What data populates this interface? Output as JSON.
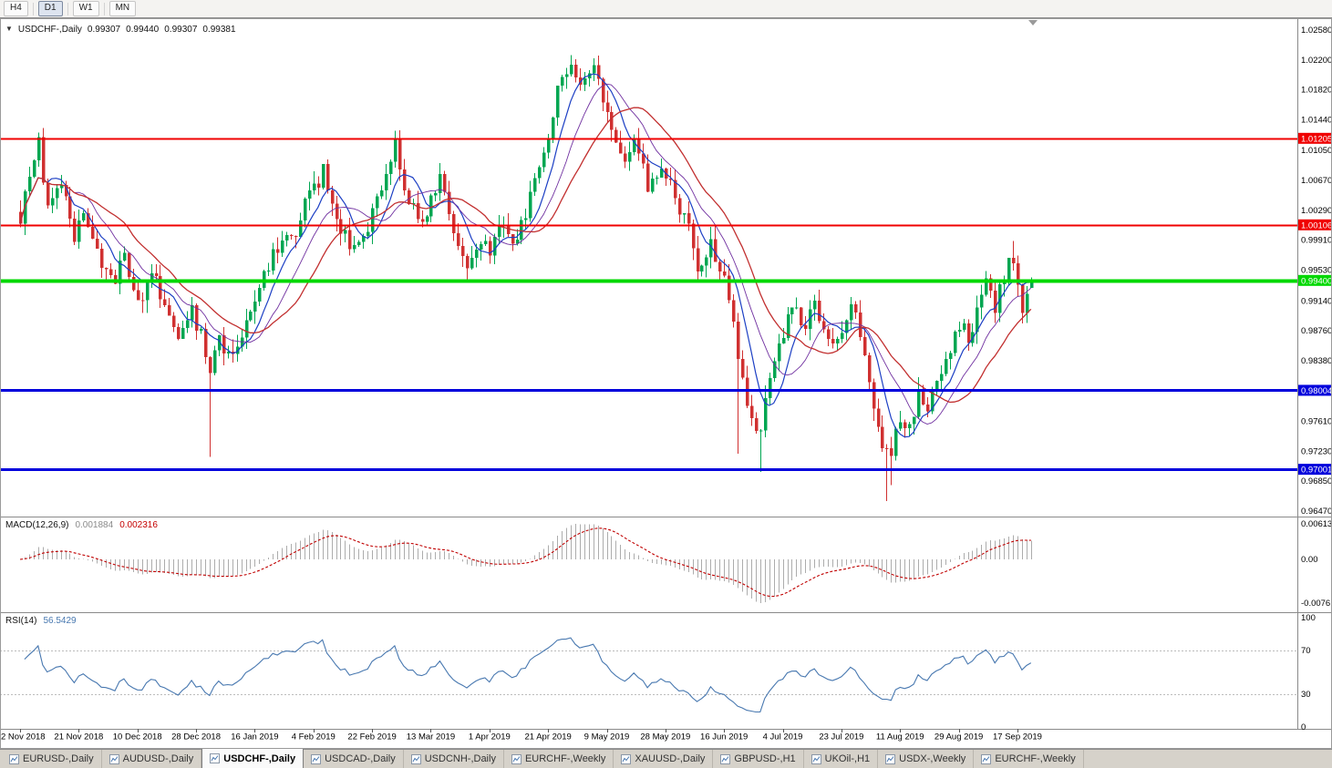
{
  "icons": {
    "symbol_caret": "▼"
  },
  "toolbar": {
    "periods": [
      {
        "label": "H4",
        "active": false
      },
      {
        "label": "D1",
        "active": true
      },
      {
        "label": "W1",
        "active": false
      },
      {
        "label": "MN",
        "active": false
      }
    ]
  },
  "chart_data": {
    "type": "candlestick",
    "symbol": "USDCHF-,Daily",
    "header_ohlc": {
      "open": "0.99307",
      "high": "0.99440",
      "low": "0.99307",
      "close": "0.99381"
    },
    "bars": 225,
    "price_axis": {
      "top": 1.0258,
      "bottom": 0.9647,
      "tick_labels": [
        "1.02580",
        "1.02200",
        "1.01820",
        "1.01440",
        "1.01050",
        "1.00670",
        "1.00290",
        "0.99910",
        "0.99530",
        "0.99140",
        "0.98760",
        "0.98380",
        "0.97610",
        "0.97230",
        "0.96850",
        "0.96470"
      ],
      "tick_values": [
        1.0258,
        1.022,
        1.0182,
        1.0144,
        1.0105,
        1.0067,
        1.0029,
        0.9991,
        0.9953,
        0.9914,
        0.9876,
        0.9838,
        0.9761,
        0.9723,
        0.9685,
        0.9647
      ]
    },
    "x_axis": {
      "tick_step_bars": 13,
      "labels": [
        "2 Nov 2018",
        "21 Nov 2018",
        "10 Dec 2018",
        "28 Dec 2018",
        "16 Jan 2019",
        "4 Feb 2019",
        "22 Feb 2019",
        "13 Mar 2019",
        "1 Apr 2019",
        "21 Apr 2019",
        "9 May 2019",
        "28 May 2019",
        "16 Jun 2019",
        "4 Jul 2019",
        "23 Jul 2019",
        "11 Aug 2019",
        "29 Aug 2019",
        "17 Sep 2019"
      ]
    },
    "hlines": [
      {
        "price": 1.01205,
        "label": "1.01205",
        "color": "#F00000",
        "width": 2
      },
      {
        "price": 1.00106,
        "label": "1.00106",
        "color": "#F00000",
        "width": 2
      },
      {
        "price": 0.994,
        "label": "0.99400",
        "color": "#00D800",
        "width": 4
      },
      {
        "price": 0.98004,
        "label": "0.98004",
        "color": "#0000DC",
        "width": 3
      },
      {
        "price": 0.97001,
        "label": "0.97001",
        "color": "#0000DC",
        "width": 3
      }
    ],
    "candles": {
      "up_color": "#00A651",
      "down_color": "#D03030",
      "noise": 0.0022,
      "seed": 911,
      "anchors": [
        [
          0,
          1.002
        ],
        [
          2,
          1.0068
        ],
        [
          4,
          1.0112
        ],
        [
          6,
          1.0032
        ],
        [
          9,
          1.0058
        ],
        [
          12,
          0.9992
        ],
        [
          14,
          1.0036
        ],
        [
          17,
          0.9976
        ],
        [
          20,
          0.9936
        ],
        [
          23,
          0.9964
        ],
        [
          26,
          0.9906
        ],
        [
          29,
          0.9948
        ],
        [
          32,
          0.9916
        ],
        [
          35,
          0.9856
        ],
        [
          38,
          0.9904
        ],
        [
          40,
          0.9868
        ],
        [
          42,
          0.983
        ],
        [
          44,
          0.9868
        ],
        [
          47,
          0.9838
        ],
        [
          50,
          0.9898
        ],
        [
          52,
          0.9924
        ],
        [
          55,
          0.9958
        ],
        [
          58,
          1.0
        ],
        [
          60,
          0.9986
        ],
        [
          63,
          1.0038
        ],
        [
          67,
          1.0078
        ],
        [
          69,
          1.0042
        ],
        [
          71,
          1.0006
        ],
        [
          74,
          0.9978
        ],
        [
          77,
          1.0012
        ],
        [
          80,
          1.0058
        ],
        [
          83,
          1.0118
        ],
        [
          85,
          1.0062
        ],
        [
          88,
          1.0012
        ],
        [
          91,
          1.004
        ],
        [
          93,
          1.0078
        ],
        [
          96,
          1.0002
        ],
        [
          99,
          0.9958
        ],
        [
          102,
          0.999
        ],
        [
          104,
          0.9976
        ],
        [
          107,
          1.0012
        ],
        [
          110,
          0.999
        ],
        [
          113,
          1.0042
        ],
        [
          116,
          1.0108
        ],
        [
          119,
          1.0178
        ],
        [
          122,
          1.0212
        ],
        [
          124,
          1.0188
        ],
        [
          127,
          1.0216
        ],
        [
          129,
          1.0168
        ],
        [
          131,
          1.0124
        ],
        [
          134,
          1.009
        ],
        [
          136,
          1.011
        ],
        [
          139,
          1.0062
        ],
        [
          142,
          1.0088
        ],
        [
          145,
          1.0048
        ],
        [
          148,
          1.0002
        ],
        [
          150,
          0.9952
        ],
        [
          153,
          0.9992
        ],
        [
          156,
          0.9938
        ],
        [
          158,
          0.9896
        ],
        [
          160,
          0.9806
        ],
        [
          162,
          0.9768
        ],
        [
          164,
          0.9742
        ],
        [
          166,
          0.982
        ],
        [
          169,
          0.9874
        ],
        [
          171,
          0.9916
        ],
        [
          174,
          0.9882
        ],
        [
          176,
          0.9908
        ],
        [
          178,
          0.9868
        ],
        [
          180,
          0.985
        ],
        [
          182,
          0.9882
        ],
        [
          184,
          0.9918
        ],
        [
          187,
          0.9848
        ],
        [
          189,
          0.9786
        ],
        [
          191,
          0.9734
        ],
        [
          193,
          0.9722
        ],
        [
          195,
          0.976
        ],
        [
          197,
          0.9748
        ],
        [
          199,
          0.9792
        ],
        [
          201,
          0.9772
        ],
        [
          203,
          0.982
        ],
        [
          205,
          0.9842
        ],
        [
          208,
          0.9888
        ],
        [
          210,
          0.9862
        ],
        [
          212,
          0.99
        ],
        [
          214,
          0.9936
        ],
        [
          216,
          0.9906
        ],
        [
          218,
          0.9948
        ],
        [
          220,
          0.9972
        ],
        [
          221,
          0.993
        ],
        [
          222,
          0.9906
        ],
        [
          223,
          0.9928
        ],
        [
          224,
          0.9938
        ]
      ],
      "wick_overrides": {
        "4": {
          "high": 1.0128
        },
        "42": {
          "low": 0.9716
        },
        "67": {
          "high": 1.0086
        },
        "83": {
          "high": 1.013
        },
        "122": {
          "high": 1.0226
        },
        "127": {
          "high": 1.0222
        },
        "153": {
          "high": 1.0008
        },
        "159": {
          "low": 0.972
        },
        "164": {
          "low": 0.9697
        },
        "192": {
          "low": 0.966
        },
        "193": {
          "low": 0.968
        },
        "220": {
          "high": 0.999
        }
      },
      "last": {
        "open": 0.99307,
        "high": 0.9944,
        "low": 0.99307,
        "close": 0.99381
      }
    },
    "moving_averages": [
      {
        "period": 7,
        "color": "#1C3FC4",
        "width": 1.2
      },
      {
        "period": 13,
        "color": "#7030A0",
        "width": 0.9
      },
      {
        "period": 21,
        "color": "#C22F2F",
        "width": 1.3
      }
    ],
    "macd": {
      "label": "MACD(12,26,9)",
      "value_main": "0.001884",
      "value_signal": "0.002316",
      "fast": 12,
      "slow": 26,
      "signal": 9,
      "scale_labels": [
        "0.00613",
        "0.00",
        "-0.00761"
      ],
      "scale_values": [
        0.00613,
        0,
        -0.00761
      ],
      "hist_color": "#ACACAC",
      "signal_color": "#C00000"
    },
    "rsi": {
      "label": "RSI(14)",
      "value": "56.5429",
      "period": 14,
      "scale_labels": [
        "100",
        "70",
        "30",
        "0"
      ],
      "scale_values": [
        100,
        70,
        30,
        0
      ],
      "levels": [
        70,
        30
      ],
      "color": "#4878B0"
    }
  },
  "tabs": {
    "items": [
      {
        "label": "EURUSD-,Daily",
        "active": false
      },
      {
        "label": "AUDUSD-,Daily",
        "active": false
      },
      {
        "label": "USDCHF-,Daily",
        "active": true
      },
      {
        "label": "USDCAD-,Daily",
        "active": false
      },
      {
        "label": "USDCNH-,Daily",
        "active": false
      },
      {
        "label": "EURCHF-,Weekly",
        "active": false
      },
      {
        "label": "XAUUSD-,Daily",
        "active": false
      },
      {
        "label": "GBPUSD-,H1",
        "active": false
      },
      {
        "label": "UKOil-,H1",
        "active": false
      },
      {
        "label": "USDX-,Weekly",
        "active": false
      },
      {
        "label": "EURCHF-,Weekly",
        "active": false
      }
    ]
  }
}
